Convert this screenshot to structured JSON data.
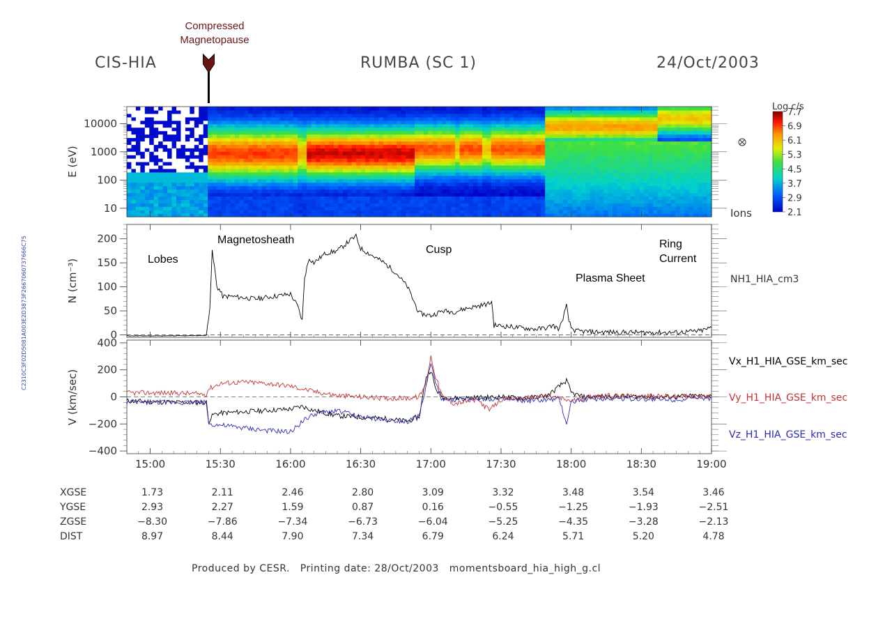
{
  "header": {
    "instrument": "CIS-HIA",
    "mission": "RUMBA (SC 1)",
    "date": "24/Oct/2003"
  },
  "event_annotation": {
    "line1": "Compressed",
    "line2": "Magnetopause",
    "time": "15:25",
    "color": "#6b1414"
  },
  "region_labels": {
    "lobes": "Lobes",
    "magnetosheath": "Magnetosheath",
    "cusp": "Cusp",
    "plasma_sheet": "Plasma Sheet",
    "ring_current_1": "Ring",
    "ring_current_2": "Current"
  },
  "footer": {
    "text": "Produced by CESR.   Printing date: 28/Oct/2003   momentsboard_hia_high_g.cl"
  },
  "side_id": "C2310C3F02D5081A003E2D3873F2667060737666C75",
  "chart_data": [
    {
      "type": "heatmap",
      "ylabel": "E (eV)",
      "yscale": "log",
      "ylim": [
        5,
        40000
      ],
      "yticks": [
        "10",
        "100",
        "1000",
        "10000"
      ],
      "species_label": "Ions",
      "colorbar_title": "Log c/s",
      "colorbar_ticks": [
        "7.7",
        "6.9",
        "6.1",
        "5.3",
        "4.5",
        "3.7",
        "2.9",
        "2.1"
      ],
      "colorbar_range": [
        2.1,
        7.7
      ],
      "symbol_icon": "circle-cross-icon"
    },
    {
      "type": "line",
      "ylabel": "N (cm⁻³)",
      "ylim": [
        -5,
        230
      ],
      "yticks": [
        "0",
        "50",
        "100",
        "150",
        "200"
      ],
      "series_label": "NH1_HIA_cm3",
      "dashed_zero": true,
      "series": [
        {
          "name": "NH1_HIA_cm3",
          "color": "#000000",
          "x": [
            "14:50",
            "15:10",
            "15:24",
            "15:25.5",
            "15:26.5",
            "15:27.5",
            "15:28.5",
            "15:29.5",
            "15:31",
            "15:35",
            "15:45",
            "16:00",
            "16:03",
            "16:05",
            "16:06",
            "16:08",
            "16:10",
            "16:15",
            "16:20",
            "16:25",
            "16:28",
            "16:30",
            "16:35",
            "16:40",
            "16:45",
            "16:50",
            "16:55",
            "17:00",
            "17:05",
            "17:10",
            "17:15",
            "17:20",
            "17:25",
            "17:26",
            "17:27",
            "17:32",
            "17:38",
            "17:45",
            "17:50",
            "17:52",
            "17:55",
            "17:58",
            "17:59",
            "18:00",
            "18:02",
            "18:10",
            "18:30",
            "18:45",
            "18:55",
            "19:00"
          ],
          "y": [
            -2,
            -2,
            -1,
            60,
            172,
            140,
            100,
            95,
            80,
            80,
            75,
            85,
            60,
            30,
            120,
            160,
            150,
            170,
            175,
            195,
            205,
            180,
            165,
            150,
            130,
            100,
            45,
            40,
            50,
            48,
            55,
            60,
            65,
            70,
            20,
            18,
            15,
            12,
            15,
            20,
            12,
            60,
            30,
            15,
            8,
            6,
            5,
            5,
            8,
            15
          ]
        }
      ]
    },
    {
      "type": "line",
      "ylabel": "V (km/sec)",
      "ylim": [
        -420,
        420
      ],
      "yticks": [
        "-400",
        "-200",
        "0",
        "200",
        "400"
      ],
      "xticks": [
        "15:00",
        "15:30",
        "16:00",
        "16:30",
        "17:00",
        "17:30",
        "18:00",
        "18:30",
        "19:00"
      ],
      "xlim": [
        "14:50",
        "19:00"
      ],
      "dashed_zero": true,
      "series": [
        {
          "name": "Vx_H1_HIA_GSE_km_sec",
          "color": "#000000",
          "x": [
            "14:50",
            "15:10",
            "15:24",
            "15:25",
            "15:27",
            "15:30",
            "15:40",
            "15:50",
            "16:00",
            "16:05",
            "16:10",
            "16:20",
            "16:30",
            "16:40",
            "16:50",
            "16:55",
            "16:58",
            "17:00",
            "17:02",
            "17:05",
            "17:10",
            "17:20",
            "17:30",
            "17:40",
            "17:50",
            "17:58",
            "18:00",
            "18:05",
            "18:20",
            "18:40",
            "19:00"
          ],
          "y": [
            -30,
            -40,
            -40,
            -180,
            -130,
            -120,
            -110,
            -100,
            -90,
            -70,
            -100,
            -140,
            -150,
            -160,
            -180,
            -150,
            150,
            200,
            60,
            0,
            -10,
            -5,
            0,
            -10,
            10,
            120,
            30,
            0,
            5,
            0,
            10
          ]
        },
        {
          "name": "Vy_H1_HIA_GSE_km_sec",
          "color": "#c83232",
          "x": [
            "14:50",
            "15:10",
            "15:24",
            "15:25",
            "15:30",
            "15:40",
            "15:50",
            "16:00",
            "16:05",
            "16:10",
            "16:20",
            "16:30",
            "16:40",
            "16:50",
            "16:55",
            "16:58",
            "17:00",
            "17:02",
            "17:05",
            "17:10",
            "17:20",
            "17:25",
            "17:30",
            "17:40",
            "17:50",
            "18:00",
            "18:10",
            "18:30",
            "19:00"
          ],
          "y": [
            30,
            30,
            20,
            60,
            100,
            110,
            100,
            80,
            60,
            40,
            10,
            0,
            -10,
            -10,
            0,
            100,
            300,
            150,
            0,
            -50,
            -20,
            -100,
            -20,
            -10,
            10,
            -30,
            10,
            5,
            0
          ]
        },
        {
          "name": "Vz_H1_HIA_GSE_km_sec",
          "color": "#2a2ab4",
          "x": [
            "14:50",
            "15:10",
            "15:24",
            "15:25",
            "15:30",
            "15:40",
            "15:50",
            "16:00",
            "16:05",
            "16:10",
            "16:20",
            "16:30",
            "16:40",
            "16:50",
            "16:55",
            "16:58",
            "17:00",
            "17:02",
            "17:05",
            "17:10",
            "17:20",
            "17:30",
            "17:40",
            "17:55",
            "17:58",
            "18:00",
            "18:05",
            "18:20",
            "18:40",
            "19:00"
          ],
          "y": [
            -40,
            -40,
            -40,
            -200,
            -210,
            -230,
            -250,
            -260,
            -180,
            -130,
            -100,
            -150,
            -170,
            -180,
            -140,
            80,
            250,
            100,
            -30,
            -20,
            -10,
            -20,
            -30,
            -20,
            -200,
            -40,
            -20,
            -10,
            -20,
            -10
          ]
        }
      ]
    }
  ],
  "ephemeris": {
    "rows": [
      {
        "label": "XGSE",
        "values": [
          "1.73",
          "2.11",
          "2.46",
          "2.80",
          "3.09",
          "3.32",
          "3.48",
          "3.54",
          "3.46"
        ]
      },
      {
        "label": "YGSE",
        "values": [
          "2.93",
          "2.27",
          "1.59",
          "0.87",
          "0.16",
          "−0.55",
          "−1.25",
          "−1.93",
          "−2.51"
        ]
      },
      {
        "label": "ZGSE",
        "values": [
          "−8.30",
          "−7.86",
          "−7.34",
          "−6.73",
          "−6.04",
          "−5.25",
          "−4.35",
          "−3.28",
          "−2.13"
        ]
      },
      {
        "label": "DIST",
        "values": [
          "8.97",
          "8.44",
          "7.90",
          "7.34",
          "6.79",
          "6.24",
          "5.71",
          "5.20",
          "4.78"
        ]
      }
    ]
  }
}
